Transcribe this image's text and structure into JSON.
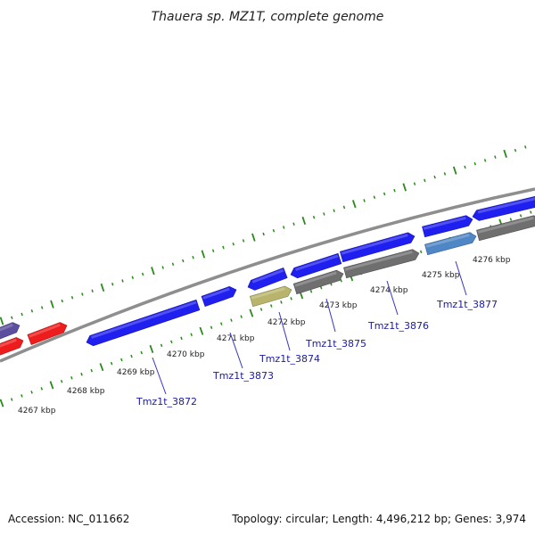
{
  "title": "Thauera sp. MZ1T, complete genome",
  "footer": {
    "accession": "Accession: NC_011662",
    "summary": "Topology: circular; Length: 4,496,212 bp; Genes: 3,974"
  },
  "colors": {
    "forward_gene": "#1f1ff0",
    "reverse_gene": "#6f6f6f",
    "rna_gene": "#ee1c1c",
    "highlight_gene": "#b8b46c",
    "light_gene": "#4f86c6",
    "purple_gene": "#5b4f9e",
    "axis": "#8e8e8e",
    "tick": "#2a8a1a",
    "label_line": "#3434cc"
  },
  "scale_labels": [
    "4267 kbp",
    "4268 kbp",
    "4269 kbp",
    "4270 kbp",
    "4271 kbp",
    "4272 kbp",
    "4273 kbp",
    "4274 kbp",
    "4275 kbp",
    "4276 kbp"
  ],
  "gene_labels": [
    "Tmz1t_3872",
    "Tmz1t_3873",
    "Tmz1t_3874",
    "Tmz1t_3875",
    "Tmz1t_3876",
    "Tmz1t_3877"
  ]
}
